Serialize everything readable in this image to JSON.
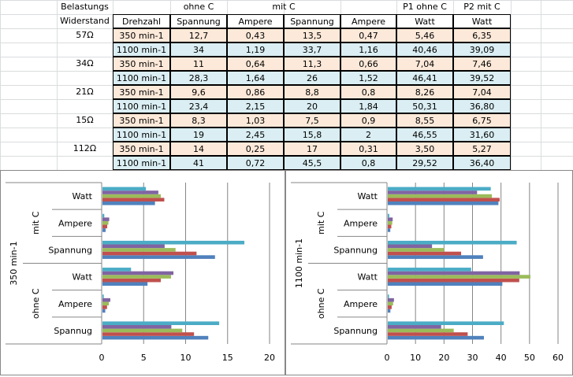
{
  "table": {
    "header_row1": {
      "col_a": "Belastungs",
      "group_ohne": "ohne C",
      "group_mit": "mit C",
      "p1": "P1 ohne C",
      "p2": "P2 mit C"
    },
    "header_row2": [
      "Widerstand",
      "Drehzahl",
      "Spannung",
      "Ampere",
      "Spannung",
      "Ampere",
      "Watt",
      "Watt"
    ],
    "rows": [
      {
        "widerstand": "57Ω",
        "drehzahl": "350 min-1",
        "u1": "12,7",
        "i1": "0,43",
        "u2": "13,5",
        "i2": "0,47",
        "p1": "5,46",
        "p2": "6,35",
        "shade": "orange"
      },
      {
        "widerstand": "",
        "drehzahl": "1100 min-1",
        "u1": "34",
        "i1": "1,19",
        "u2": "33,7",
        "i2": "1,16",
        "p1": "40,46",
        "p2": "39,09",
        "shade": "blue"
      },
      {
        "widerstand": "34Ω",
        "drehzahl": "350 min-1",
        "u1": "11",
        "i1": "0,64",
        "u2": "11,3",
        "i2": "0,66",
        "p1": "7,04",
        "p2": "7,46",
        "shade": "orange"
      },
      {
        "widerstand": "",
        "drehzahl": "1100 min-1",
        "u1": "28,3",
        "i1": "1,64",
        "u2": "26",
        "i2": "1,52",
        "p1": "46,41",
        "p2": "39,52",
        "shade": "blue"
      },
      {
        "widerstand": "21Ω",
        "drehzahl": "350 min-1",
        "u1": "9,6",
        "i1": "0,86",
        "u2": "8,8",
        "i2": "0,8",
        "p1": "8,26",
        "p2": "7,04",
        "shade": "orange"
      },
      {
        "widerstand": "",
        "drehzahl": "1100 min-1",
        "u1": "23,4",
        "i1": "2,15",
        "u2": "20",
        "i2": "1,84",
        "p1": "50,31",
        "p2": "36,80",
        "shade": "blue"
      },
      {
        "widerstand": "15Ω",
        "drehzahl": "350 min-1",
        "u1": "8,3",
        "i1": "1,03",
        "u2": "7,5",
        "i2": "0,9",
        "p1": "8,55",
        "p2": "6,75",
        "shade": "orange"
      },
      {
        "widerstand": "",
        "drehzahl": "1100 min-1",
        "u1": "19",
        "i1": "2,45",
        "u2": "15,8",
        "i2": "2",
        "p1": "46,55",
        "p2": "31,60",
        "shade": "blue"
      },
      {
        "widerstand": "112Ω",
        "drehzahl": "350 min-1",
        "u1": "14",
        "i1": "0,25",
        "u2": "17",
        "i2": "0,31",
        "p1": "3,50",
        "p2": "5,27",
        "shade": "orange"
      },
      {
        "widerstand": "",
        "drehzahl": "1100 min-1",
        "u1": "41",
        "i1": "0,72",
        "u2": "45,5",
        "i2": "0,8",
        "p1": "29,52",
        "p2": "36,40",
        "shade": "blue"
      }
    ],
    "colors": {
      "orange": "#fde9d9",
      "blue": "#daeef3"
    }
  },
  "chart_data": [
    {
      "type": "bar",
      "orientation": "horizontal",
      "outer_label": "350 min-1",
      "groups": [
        {
          "label": "mit C",
          "categories": [
            "Watt",
            "Ampere",
            "Spannung"
          ]
        },
        {
          "label": "ohne C",
          "categories": [
            "Watt",
            "Ampere",
            "Spannug"
          ]
        }
      ],
      "series": [
        {
          "name": "57Ω",
          "color": "#4f81bd",
          "values": [
            6.35,
            0.47,
            13.5,
            5.46,
            0.43,
            12.7
          ]
        },
        {
          "name": "34Ω",
          "color": "#c0504d",
          "values": [
            7.46,
            0.66,
            11.3,
            7.04,
            0.64,
            11
          ]
        },
        {
          "name": "21Ω",
          "color": "#9bbb59",
          "values": [
            7.04,
            0.8,
            8.8,
            8.26,
            0.86,
            9.6
          ]
        },
        {
          "name": "15Ω",
          "color": "#8064a2",
          "values": [
            6.75,
            0.9,
            7.5,
            8.55,
            1.03,
            8.3
          ]
        },
        {
          "name": "112Ω",
          "color": "#4bacc6",
          "values": [
            5.27,
            0.31,
            17,
            3.5,
            0.25,
            14
          ]
        }
      ],
      "xlim": [
        0,
        20
      ],
      "xticks": [
        "0",
        "5",
        "10",
        "15",
        "20"
      ],
      "grid": true,
      "legend": "none"
    },
    {
      "type": "bar",
      "orientation": "horizontal",
      "outer_label": "1100 min-1",
      "groups": [
        {
          "label": "mit C",
          "categories": [
            "Watt",
            "Ampere",
            "Spannung"
          ]
        },
        {
          "label": "ohne C",
          "categories": [
            "Watt",
            "Ampere",
            "Spannung"
          ]
        }
      ],
      "series": [
        {
          "name": "57Ω",
          "color": "#4f81bd",
          "values": [
            39.09,
            1.16,
            33.7,
            40.46,
            1.19,
            34
          ]
        },
        {
          "name": "34Ω",
          "color": "#c0504d",
          "values": [
            39.52,
            1.52,
            26,
            46.41,
            1.64,
            28.3
          ]
        },
        {
          "name": "21Ω",
          "color": "#9bbb59",
          "values": [
            36.8,
            1.84,
            20,
            50.31,
            2.15,
            23.4
          ]
        },
        {
          "name": "15Ω",
          "color": "#8064a2",
          "values": [
            31.6,
            2,
            15.8,
            46.55,
            2.45,
            19
          ]
        },
        {
          "name": "112Ω",
          "color": "#4bacc6",
          "values": [
            36.4,
            0.8,
            45.5,
            29.52,
            0.72,
            41
          ]
        }
      ],
      "xlim": [
        0,
        60
      ],
      "xticks": [
        "0",
        "10",
        "20",
        "30",
        "40",
        "50",
        "60"
      ],
      "grid": true,
      "legend": "none"
    }
  ]
}
